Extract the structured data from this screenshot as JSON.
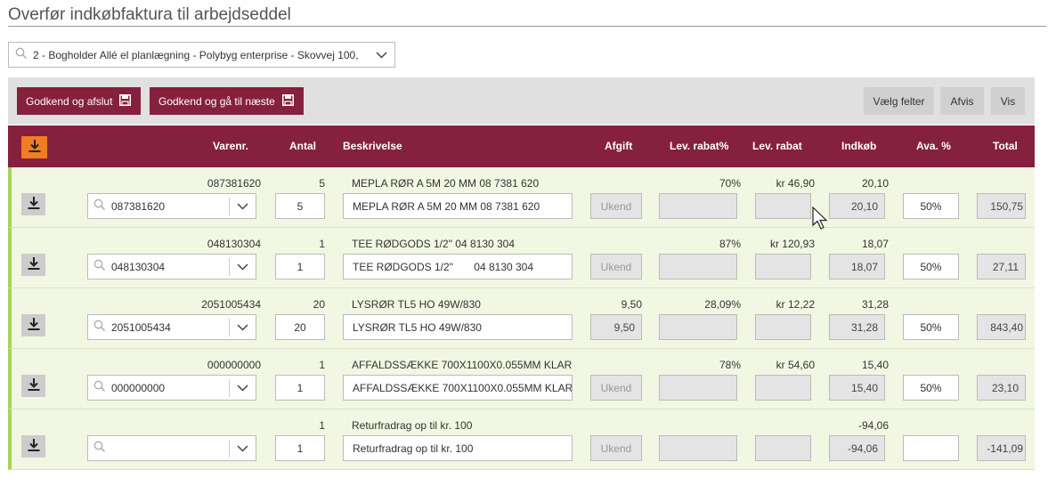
{
  "page": {
    "title": "Overfør indkøbfaktura til arbejdseddel"
  },
  "company_select": {
    "value": "2 - Bogholder Allé el planlægning - Polybyg enterprise - Skovvej 100,"
  },
  "toolbar": {
    "approve_finish_label": "Godkend og afslut",
    "approve_next_label": "Godkend og gå til næste",
    "choose_fields_label": "Vælg felter",
    "reject_label": "Afvis",
    "show_label": "Vis"
  },
  "columns": {
    "varenr": "Varenr.",
    "antal": "Antal",
    "beskrivelse": "Beskrivelse",
    "afgift": "Afgift",
    "lev_rabat_pct": "Lev. rabat%",
    "lev_rabat": "Lev. rabat",
    "indkob": "Indkøb",
    "ava_pct": "Ava. %",
    "total": "Total"
  },
  "rows": [
    {
      "top": {
        "varenr": "087381620",
        "antal": "5",
        "beskrivelse": "MEPLA RØR A 5M 20 MM 08 7381 620",
        "afgift": "",
        "lev_rabat_pct": "70%",
        "lev_rabat": "kr 46,90",
        "indkob": "20,10"
      },
      "inputs": {
        "varenr": "087381620",
        "antal": "5",
        "beskrivelse": "MEPLA RØR A 5M  20 MM  08 7381 620",
        "afgift": "Ukend",
        "lev_rabat_pct": "",
        "lev_rabat": "",
        "indkob": "20,10",
        "ava_pct": "50%",
        "total": "150,75"
      }
    },
    {
      "top": {
        "varenr": "048130304",
        "antal": "1",
        "beskrivelse": "TEE RØDGODS 1/2\" 04 8130 304",
        "afgift": "",
        "lev_rabat_pct": "87%",
        "lev_rabat": "kr 120,93",
        "indkob": "18,07"
      },
      "inputs": {
        "varenr": "048130304",
        "antal": "1",
        "beskrivelse": "TEE RØDGODS 1/2\"       04 8130 304",
        "afgift": "Ukend",
        "lev_rabat_pct": "",
        "lev_rabat": "",
        "indkob": "18,07",
        "ava_pct": "50%",
        "total": "27,11"
      }
    },
    {
      "top": {
        "varenr": "2051005434",
        "antal": "20",
        "beskrivelse": "LYSRØR TL5 HO 49W/830",
        "afgift": "9,50",
        "lev_rabat_pct": "28,09%",
        "lev_rabat": "kr 12,22",
        "indkob": "31,28"
      },
      "inputs": {
        "varenr": "2051005434",
        "antal": "20",
        "beskrivelse": "LYSRØR TL5 HO 49W/830",
        "afgift": "9,50",
        "lev_rabat_pct": "",
        "lev_rabat": "",
        "indkob": "31,28",
        "ava_pct": "50%",
        "total": "843,40"
      }
    },
    {
      "top": {
        "varenr": "000000000",
        "antal": "1",
        "beskrivelse": "AFFALDSSÆKKE 700X1100X0.055MM KLAR",
        "afgift": "",
        "lev_rabat_pct": "78%",
        "lev_rabat": "kr 54,60",
        "indkob": "15,40"
      },
      "inputs": {
        "varenr": "000000000",
        "antal": "1",
        "beskrivelse": "AFFALDSSÆKKE 700X1100X0.055MM KLAR",
        "afgift": "Ukend",
        "lev_rabat_pct": "",
        "lev_rabat": "",
        "indkob": "15,40",
        "ava_pct": "50%",
        "total": "23,10"
      }
    },
    {
      "top": {
        "varenr": "",
        "antal": "1",
        "beskrivelse": "Returfradrag op til kr. 100",
        "afgift": "",
        "lev_rabat_pct": "",
        "lev_rabat": "",
        "indkob": "-94,06"
      },
      "inputs": {
        "varenr": "",
        "antal": "1",
        "beskrivelse": "Returfradrag op til kr. 100",
        "afgift": "Ukend",
        "lev_rabat_pct": "",
        "lev_rabat": "",
        "indkob": "-94,06",
        "ava_pct": "",
        "total": "-141,09"
      }
    }
  ],
  "colors": {
    "brand": "#86203f",
    "accent_orange": "#f07d22",
    "row_bg": "#f1f7e2",
    "row_marker": "#a9d35a"
  }
}
